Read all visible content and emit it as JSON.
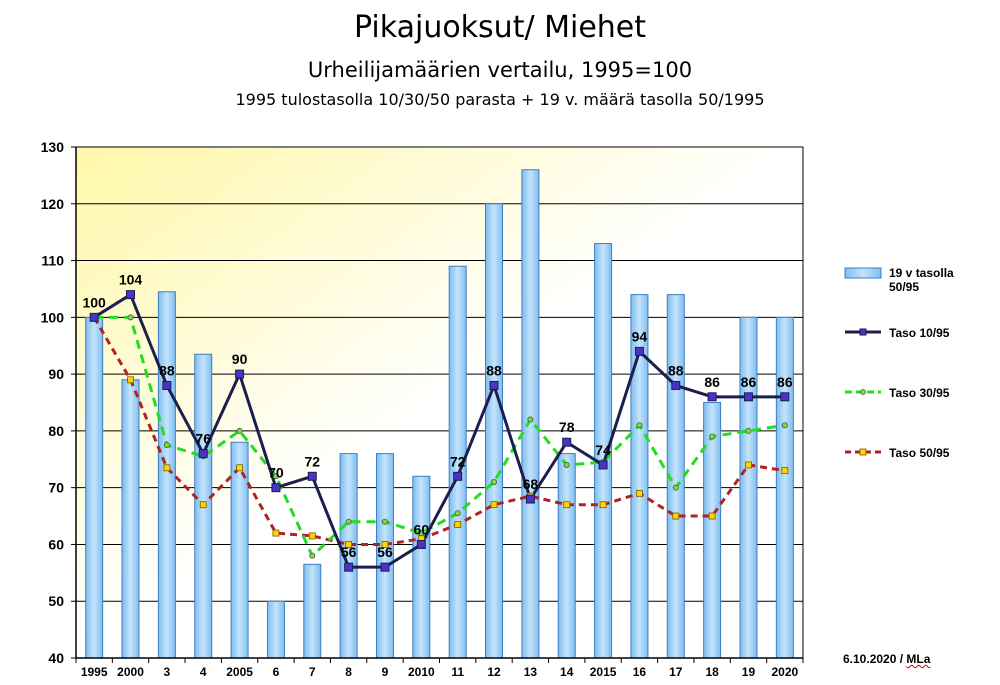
{
  "header": {
    "title": "Pikajuoksut/ Miehet",
    "subtitle": "Urheilijamäärien vertailu, 1995=100",
    "note": "1995 tulostasolla 10/30/50 parasta + 19 v. määrä tasolla 50/1995"
  },
  "footer": {
    "date": "6.10.2020 / ",
    "author": "MLa"
  },
  "chart_data": {
    "type": "bar",
    "categories": [
      "1995",
      "2000",
      "3",
      "4",
      "2005",
      "6",
      "7",
      "8",
      "9",
      "2010",
      "11",
      "12",
      "13",
      "14",
      "2015",
      "16",
      "17",
      "18",
      "19",
      "2020"
    ],
    "ylim": [
      40,
      130
    ],
    "yticks": [
      40,
      50,
      60,
      70,
      80,
      90,
      100,
      110,
      120,
      130
    ],
    "grid": true,
    "legend_position": "right",
    "series": [
      {
        "name": "19 v tasolla 50/95",
        "kind": "bar",
        "color": "#9ccff5",
        "values": [
          100,
          89,
          104.5,
          93.5,
          78,
          50,
          56.5,
          76,
          76,
          72,
          109,
          120,
          126,
          76,
          113,
          104,
          104,
          85,
          100,
          100
        ]
      },
      {
        "name": "Taso 10/95",
        "kind": "line",
        "color": "#1a1f4e",
        "marker_color": "#4a33c8",
        "values": [
          100,
          104,
          88,
          76,
          90,
          70,
          72,
          56,
          56,
          60,
          72,
          88,
          68,
          78,
          74,
          94,
          88,
          86,
          86,
          86
        ]
      },
      {
        "name": "Taso 30/95",
        "kind": "line",
        "color": "#22dd22",
        "marker_color": "#8fd14f",
        "values": [
          100,
          100,
          77.5,
          75.5,
          80,
          72,
          58,
          64,
          64,
          62,
          65.5,
          71,
          82,
          74,
          74.5,
          81,
          70,
          79,
          80,
          81
        ]
      },
      {
        "name": "Taso 50/95",
        "kind": "line",
        "color": "#b22222",
        "marker_color": "#ffd700",
        "values": [
          100,
          89,
          73.5,
          67,
          73.5,
          62,
          61.5,
          60,
          60,
          61,
          63.5,
          67,
          68.5,
          67,
          67,
          69,
          65,
          65,
          74,
          73
        ]
      }
    ],
    "data_labels": {
      "series": "Taso 10/95",
      "values": [
        "100",
        "104",
        "88",
        "76",
        "90",
        "70",
        "72",
        "56",
        "56",
        "60",
        "72",
        "88",
        "68",
        "78",
        "74",
        "94",
        "88",
        "86",
        "86",
        "86"
      ]
    }
  }
}
